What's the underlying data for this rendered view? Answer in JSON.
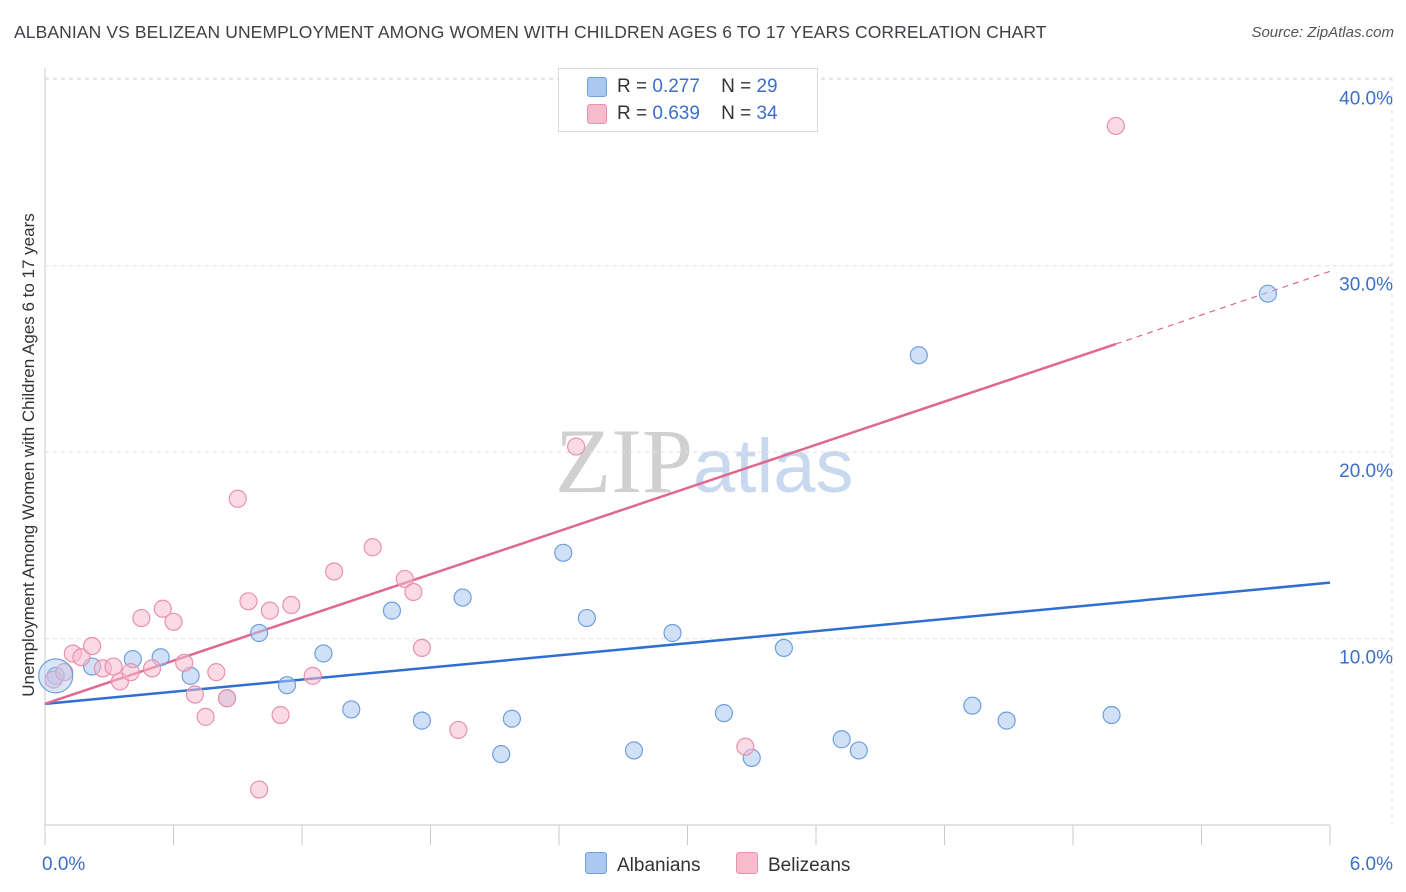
{
  "header": {
    "title": "ALBANIAN VS BELIZEAN UNEMPLOYMENT AMONG WOMEN WITH CHILDREN AGES 6 TO 17 YEARS CORRELATION CHART",
    "source": "Source: ZipAtlas.com"
  },
  "watermark": {
    "zip": "ZIP",
    "atlas": "atlas"
  },
  "legend": {
    "rows": [
      {
        "r_label": "R =",
        "r_value": "0.277",
        "n_label": "N =",
        "n_value": "29"
      },
      {
        "r_label": "R =",
        "r_value": "0.639",
        "n_label": "N =",
        "n_value": "34"
      }
    ]
  },
  "bottom_legend": {
    "albanians": "Albanians",
    "belizeans": "Belizeans"
  },
  "colors": {
    "albanians_fill": "#aac8f0",
    "albanians_stroke": "#6f9fdc",
    "albanians_line": "#2f6fd0",
    "belizeans_fill": "#f6bccd",
    "belizeans_stroke": "#e991ad",
    "belizeans_line": "#e0688f",
    "tick_label": "#3b6fc9",
    "grid": "#e0e0e0"
  },
  "chart_data": {
    "type": "scatter",
    "title": "ALBANIAN VS BELIZEAN UNEMPLOYMENT AMONG WOMEN WITH CHILDREN AGES 6 TO 17 YEARS CORRELATION CHART",
    "xlabel": "",
    "ylabel": "Unemployment Among Women with Children Ages 6 to 17 years",
    "xlim": [
      0,
      6
    ],
    "ylim": [
      0,
      40.5
    ],
    "x_tick_labels": [
      "0.0%",
      "6.0%"
    ],
    "y_ticks": [
      10,
      20,
      30,
      40
    ],
    "y_tick_labels": [
      "10.0%",
      "20.0%",
      "30.0%",
      "40.0%"
    ],
    "grid": true,
    "legend_position": "top-center",
    "series": [
      {
        "name": "Albanians",
        "points": [
          [
            0.05,
            8.0
          ],
          [
            0.22,
            8.5
          ],
          [
            0.41,
            8.9
          ],
          [
            0.54,
            9.0
          ],
          [
            0.68,
            8.0
          ],
          [
            0.85,
            6.8
          ],
          [
            1.0,
            10.3
          ],
          [
            1.13,
            7.5
          ],
          [
            1.3,
            9.2
          ],
          [
            1.43,
            6.2
          ],
          [
            1.62,
            11.5
          ],
          [
            1.76,
            5.6
          ],
          [
            1.95,
            12.2
          ],
          [
            2.13,
            3.8
          ],
          [
            2.18,
            5.7
          ],
          [
            2.42,
            14.6
          ],
          [
            2.53,
            11.1
          ],
          [
            2.75,
            4.0
          ],
          [
            2.93,
            10.3
          ],
          [
            3.17,
            6.0
          ],
          [
            3.3,
            3.6
          ],
          [
            3.45,
            9.5
          ],
          [
            3.72,
            4.6
          ],
          [
            3.8,
            4.0
          ],
          [
            4.08,
            25.2
          ],
          [
            4.33,
            6.4
          ],
          [
            4.49,
            5.6
          ],
          [
            4.98,
            5.9
          ],
          [
            5.71,
            28.5
          ]
        ],
        "trend": {
          "x": [
            0,
            6
          ],
          "y": [
            6.5,
            13.0
          ]
        }
      },
      {
        "name": "Belizeans",
        "points": [
          [
            0.04,
            7.8
          ],
          [
            0.09,
            8.2
          ],
          [
            0.13,
            9.2
          ],
          [
            0.17,
            9.0
          ],
          [
            0.22,
            9.6
          ],
          [
            0.27,
            8.4
          ],
          [
            0.32,
            8.5
          ],
          [
            0.35,
            7.7
          ],
          [
            0.4,
            8.2
          ],
          [
            0.45,
            11.1
          ],
          [
            0.5,
            8.4
          ],
          [
            0.55,
            11.6
          ],
          [
            0.6,
            10.9
          ],
          [
            0.65,
            8.7
          ],
          [
            0.7,
            7.0
          ],
          [
            0.75,
            5.8
          ],
          [
            0.8,
            8.2
          ],
          [
            0.85,
            6.8
          ],
          [
            0.9,
            17.5
          ],
          [
            0.95,
            12.0
          ],
          [
            1.0,
            1.9
          ],
          [
            1.05,
            11.5
          ],
          [
            1.1,
            5.9
          ],
          [
            1.15,
            11.8
          ],
          [
            1.25,
            8.0
          ],
          [
            1.35,
            13.6
          ],
          [
            1.53,
            14.9
          ],
          [
            1.68,
            13.2
          ],
          [
            1.72,
            12.5
          ],
          [
            1.76,
            9.5
          ],
          [
            1.93,
            5.1
          ],
          [
            2.48,
            20.3
          ],
          [
            3.27,
            4.2
          ],
          [
            5.0,
            37.5
          ]
        ],
        "trend": {
          "x": [
            0,
            5.0
          ],
          "y": [
            6.5,
            25.8
          ]
        },
        "trend_dashed": {
          "x": [
            5.0,
            6.0
          ],
          "y": [
            25.8,
            29.7
          ]
        }
      }
    ]
  }
}
